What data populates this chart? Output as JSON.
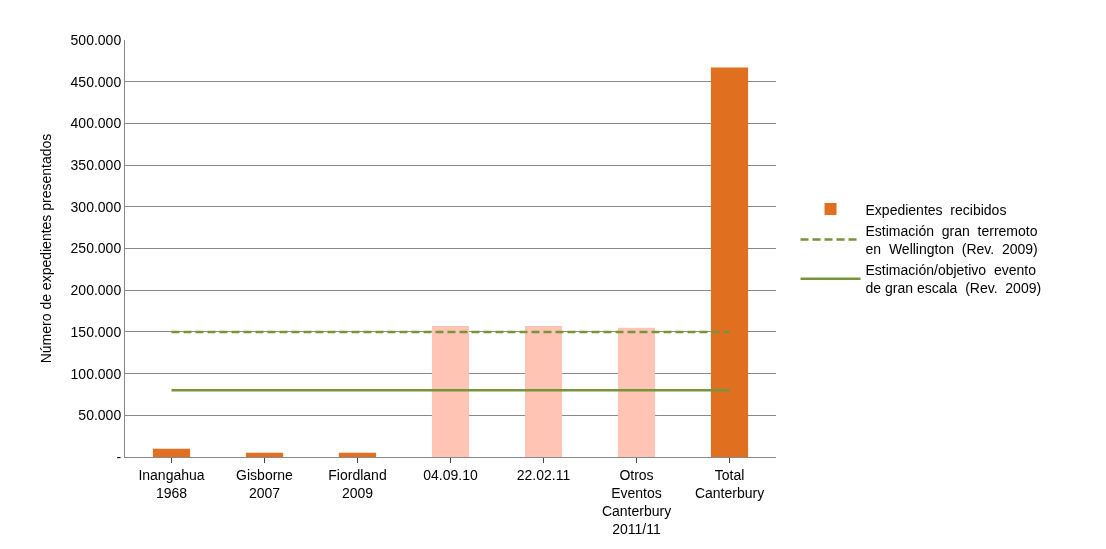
{
  "chart_data": {
    "type": "bar",
    "ylabel": "Número de expedientes presentados",
    "categories": [
      "Inangahua\n1968",
      "Gisborne\n2007",
      "Fiordland\n2009",
      "04.09.10",
      "22.02.11",
      "Otros\nEventos\nCanterbury\n2011/11",
      "Total\nCanterbury"
    ],
    "series": [
      {
        "name": "Expedientes  recibidos",
        "colors": [
          "#e07020",
          "#e07020",
          "#e07020",
          "#ffc4b4",
          "#ffc4b4",
          "#ffc4b4",
          "#e07020"
        ],
        "values": [
          10000,
          5000,
          5000,
          157000,
          157000,
          155000,
          467000
        ]
      },
      {
        "name": "Estimación  gran  terremoto\nen  Wellington  (Rev.  2009)",
        "type": "line",
        "color": "#77933c",
        "line_style": "dashed",
        "values": [
          150000,
          150000,
          150000,
          150000,
          150000,
          150000,
          150000
        ]
      },
      {
        "name": "Estimación/objetivo  evento\nde gran escala  (Rev.  2009)",
        "type": "line",
        "color": "#77933c",
        "line_style": "solid",
        "values": [
          80000,
          80000,
          80000,
          80000,
          80000,
          80000,
          80000
        ]
      }
    ],
    "ylim": [
      0,
      500000
    ],
    "yticks": [
      {
        "value": 0,
        "label": "-"
      },
      {
        "value": 50000,
        "label": "50.000"
      },
      {
        "value": 100000,
        "label": "100.000"
      },
      {
        "value": 150000,
        "label": "150.000"
      },
      {
        "value": 200000,
        "label": "200.000"
      },
      {
        "value": 250000,
        "label": "250.000"
      },
      {
        "value": 300000,
        "label": "300.000"
      },
      {
        "value": 350000,
        "label": "350.000"
      },
      {
        "value": 400000,
        "label": "400.000"
      },
      {
        "value": 450000,
        "label": "450.000"
      },
      {
        "value": 500000,
        "label": "500.000"
      }
    ],
    "grid": "y",
    "legend": "right",
    "marker": "none"
  }
}
